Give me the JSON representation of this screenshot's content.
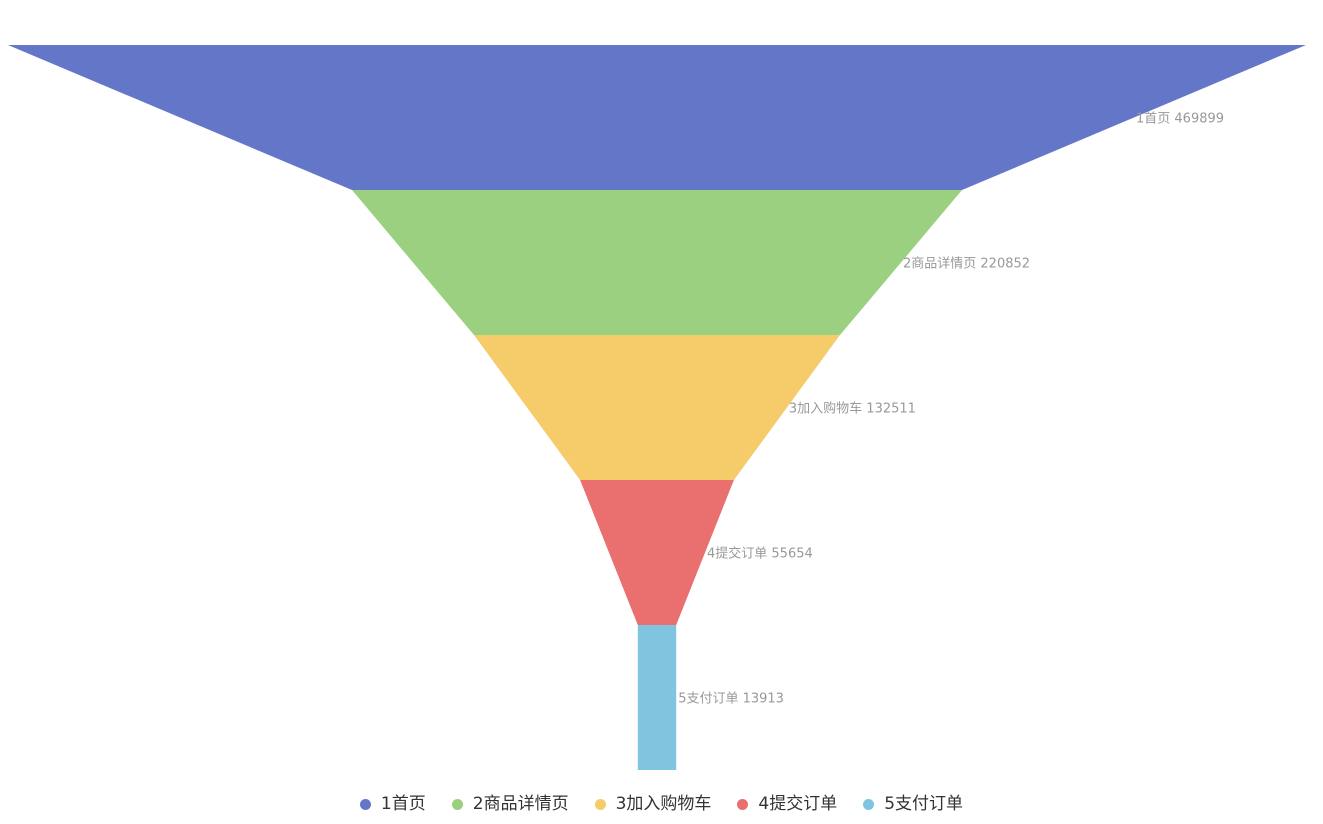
{
  "chart_data": {
    "type": "funnel",
    "title": "",
    "categories": [
      "1首页",
      "2商品详情页",
      "3加入购物车",
      "4提交订单",
      "5支付订单"
    ],
    "values": [
      469899,
      220852,
      132511,
      55654,
      13913
    ],
    "colors": [
      "#6476c8",
      "#9ad07f",
      "#f6cb6a",
      "#ea6f6f",
      "#80c4e0"
    ],
    "sort": "descending",
    "label_position": "right",
    "legend_position": "bottom"
  },
  "labels": [
    "1首页 469899",
    "2商品详情页 220852",
    "3加入购物车 132511",
    "4提交订单 55654",
    "5支付订单 13913"
  ],
  "legend": {
    "items": [
      {
        "label": "1首页",
        "color": "#6476c8"
      },
      {
        "label": "2商品详情页",
        "color": "#9ad07f"
      },
      {
        "label": "3加入购物车",
        "color": "#f6cb6a"
      },
      {
        "label": "4提交订单",
        "color": "#ea6f6f"
      },
      {
        "label": "5支付订单",
        "color": "#80c4e0"
      }
    ]
  }
}
